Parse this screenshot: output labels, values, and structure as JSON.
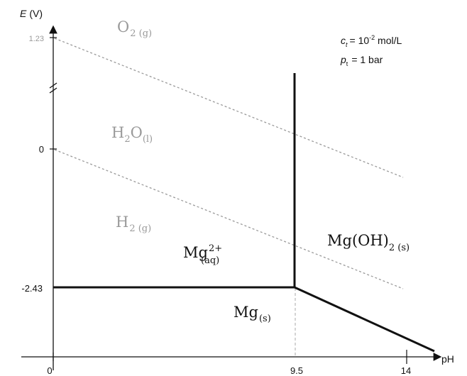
{
  "diagram": {
    "y_axis_label": {
      "symbol": "E",
      "unit": "(V)"
    },
    "x_axis_label": "pH",
    "y_ticks": [
      "1.23",
      "0",
      "-2.43"
    ],
    "x_ticks": [
      "0",
      "9.5",
      "14"
    ],
    "conditions": {
      "ct": {
        "symbol": "c",
        "sub": "t",
        "value": "= 10",
        "exp": "-2",
        "unit": " mol/L"
      },
      "pt": {
        "symbol": "p",
        "sub": "t",
        "value": "= 1 bar"
      }
    },
    "water_labels": {
      "o2": {
        "base": "O",
        "sub": "2 (g)"
      },
      "h2o": {
        "a": "H",
        "a_sub": "2",
        "b": "O",
        "b_sub": "(l)"
      },
      "h2": {
        "base": "H",
        "sub": "2 (g)"
      }
    },
    "regions": {
      "mg_aq": {
        "base": "Mg",
        "sup": "2+",
        "sub": "(aq)"
      },
      "mg_oh2": {
        "base": "Mg(OH)",
        "sub": "2 (s)"
      },
      "mg_s": {
        "base": "Mg",
        "sub": "(s)"
      }
    },
    "colors": {
      "boundary": "#111111",
      "water_line": "#9a9a9a",
      "water_text": "#9a9a9a"
    }
  }
}
